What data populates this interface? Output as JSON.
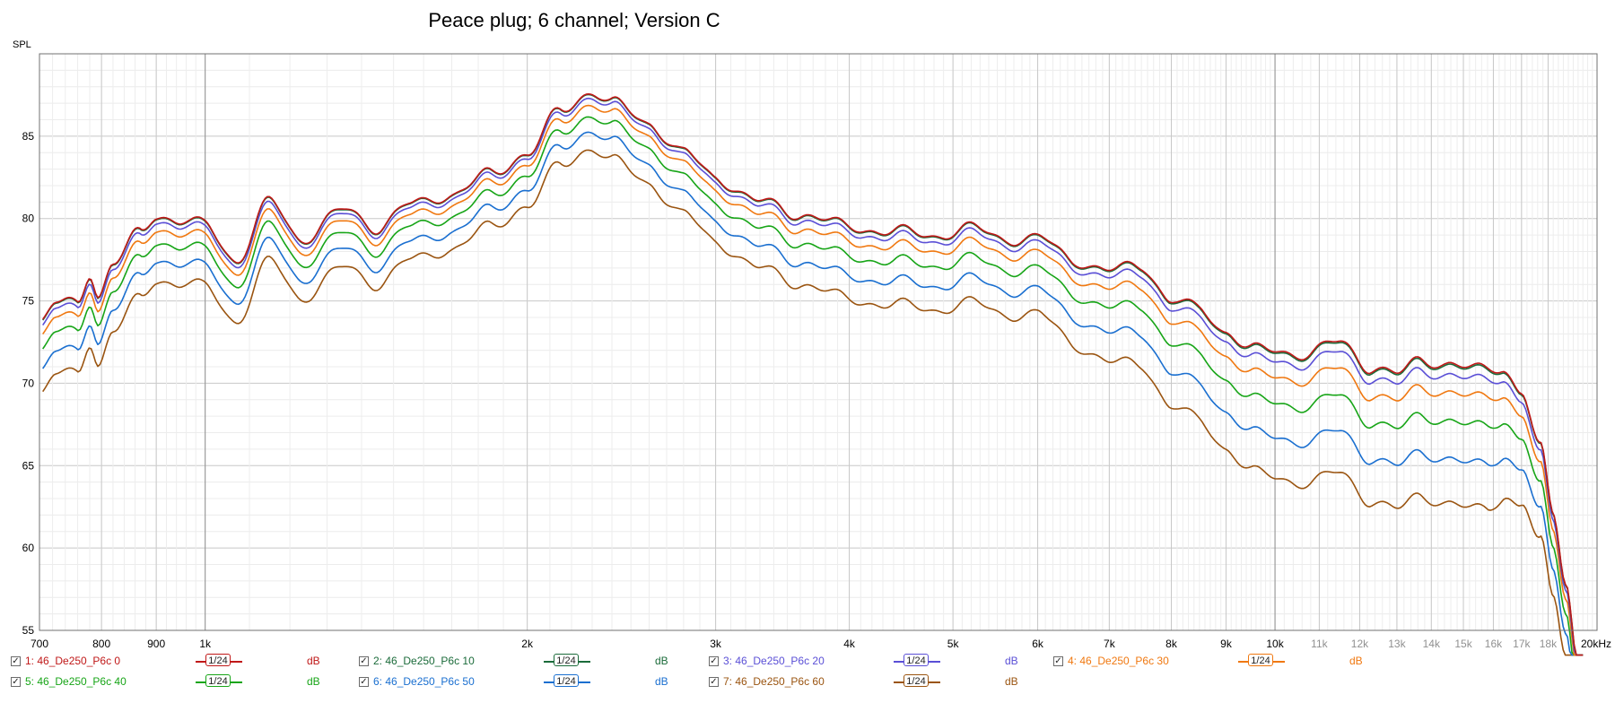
{
  "chart_data": {
    "type": "line",
    "title": "Peace plug; 6 channel; Version C",
    "ylabel": "SPL",
    "xscale": "log",
    "xlim": [
      700,
      20000
    ],
    "ylim": [
      55,
      90
    ],
    "yticks": [
      "55",
      "60",
      "65",
      "70",
      "75",
      "80",
      "85"
    ],
    "xticks": [
      {
        "v": 700,
        "label": "700",
        "minor": false
      },
      {
        "v": 800,
        "label": "800",
        "minor": false
      },
      {
        "v": 900,
        "label": "900",
        "minor": false
      },
      {
        "v": 1000,
        "label": "1k",
        "minor": false
      },
      {
        "v": 2000,
        "label": "2k",
        "minor": false
      },
      {
        "v": 3000,
        "label": "3k",
        "minor": false
      },
      {
        "v": 4000,
        "label": "4k",
        "minor": false
      },
      {
        "v": 5000,
        "label": "5k",
        "minor": false
      },
      {
        "v": 6000,
        "label": "6k",
        "minor": false
      },
      {
        "v": 7000,
        "label": "7k",
        "minor": false
      },
      {
        "v": 8000,
        "label": "8k",
        "minor": false
      },
      {
        "v": 9000,
        "label": "9k",
        "minor": false
      },
      {
        "v": 10000,
        "label": "10k",
        "minor": false
      },
      {
        "v": 11000,
        "label": "11k",
        "minor": true
      },
      {
        "v": 12000,
        "label": "12k",
        "minor": true
      },
      {
        "v": 13000,
        "label": "13k",
        "minor": true
      },
      {
        "v": 14000,
        "label": "14k",
        "minor": true
      },
      {
        "v": 15000,
        "label": "15k",
        "minor": true
      },
      {
        "v": 16000,
        "label": "16k",
        "minor": true
      },
      {
        "v": 17000,
        "label": "17k",
        "minor": true
      },
      {
        "v": 18000,
        "label": "18k",
        "minor": true
      },
      {
        "v": 20000,
        "label": "20kHz",
        "minor": false
      }
    ],
    "grid": true,
    "base_x": [
      700,
      725,
      760,
      780,
      795,
      820,
      870,
      900,
      950,
      1000,
      1070,
      1150,
      1230,
      1350,
      1450,
      1550,
      1700,
      1850,
      2000,
      2150,
      2300,
      2400,
      2600,
      2800,
      3000,
      3300,
      3600,
      4000,
      4400,
      4800,
      5200,
      5600,
      6000,
      6500,
      7000,
      7500,
      8000,
      8500,
      9000,
      9500,
      10000,
      10700,
      11500,
      12300,
      13000,
      13700,
      14500,
      15300,
      16300,
      17000,
      17700,
      18200,
      18700,
      19200
    ],
    "base_y": [
      73.5,
      74.8,
      75.0,
      76.8,
      75.3,
      77.2,
      79.2,
      80.3,
      79.8,
      79.6,
      77.5,
      81.0,
      78.8,
      80.5,
      79.5,
      80.8,
      81.5,
      82.7,
      84.0,
      86.5,
      87.8,
      87.0,
      85.8,
      84.0,
      82.5,
      81.0,
      80.3,
      79.5,
      79.2,
      79.0,
      79.4,
      78.8,
      78.8,
      77.5,
      76.8,
      77.2,
      75.0,
      74.5,
      73.2,
      72.0,
      72.0,
      71.8,
      72.5,
      71.0,
      70.5,
      71.5,
      71.2,
      70.8,
      71.0,
      69.5,
      66.0,
      62.0,
      58.0,
      53.0
    ],
    "series": [
      {
        "legend": "1: 46_De250_P6c 0",
        "smoothing": "1/24",
        "unit": "dB",
        "color": "#c01818",
        "depth": 0.0
      },
      {
        "legend": "2: 46_De250_P6c 10",
        "smoothing": "1/24",
        "unit": "dB",
        "color": "#1b6b3a",
        "depth": 0.05
      },
      {
        "legend": "3: 46_De250_P6c 20",
        "smoothing": "1/24",
        "unit": "dB",
        "color": "#5a4fd6",
        "depth": 0.35
      },
      {
        "legend": "4: 46_De250_P6c 30",
        "smoothing": "1/24",
        "unit": "dB",
        "color": "#f07810",
        "depth": 0.9
      },
      {
        "legend": "5: 46_De250_P6c 40",
        "smoothing": "1/24",
        "unit": "dB",
        "color": "#17a517",
        "depth": 1.8
      },
      {
        "legend": "6: 46_De250_P6c 50",
        "smoothing": "1/24",
        "unit": "dB",
        "color": "#1a6fd0",
        "depth": 3.0
      },
      {
        "legend": "7: 46_De250_P6c 60",
        "smoothing": "1/24",
        "unit": "dB",
        "color": "#9a5410",
        "depth": 4.4
      }
    ]
  }
}
